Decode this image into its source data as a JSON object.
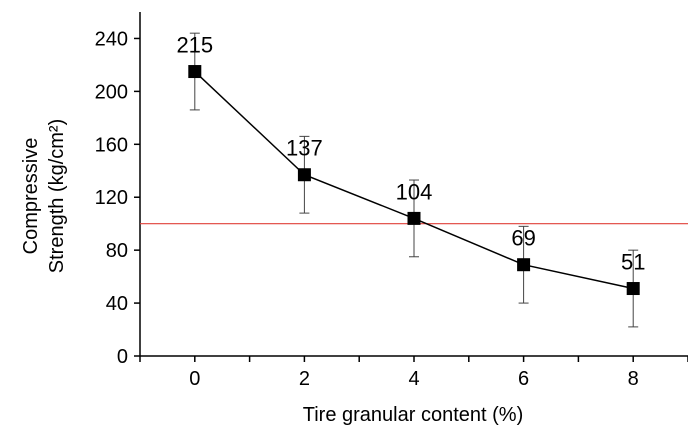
{
  "chart_data": {
    "type": "line",
    "xlabel": "Tire granular content (%)",
    "ylabel_line1": "Compressive",
    "ylabel_line2": "Strength (kg/cm²)",
    "ylim": [
      0,
      260
    ],
    "xlim": [
      -1,
      9
    ],
    "yticks": [
      "0",
      "40",
      "80",
      "120",
      "160",
      "200",
      "240"
    ],
    "xticks": [
      "0",
      "2",
      "4",
      "6",
      "8"
    ],
    "grid": false,
    "series": [
      {
        "x": [
          0,
          2,
          4,
          6,
          8
        ],
        "y": [
          215,
          137,
          104,
          69,
          51
        ],
        "error": [
          29,
          29,
          29,
          29,
          29
        ],
        "labels": [
          "215",
          "137",
          "104",
          "69",
          "51"
        ],
        "marker": "square",
        "color": "#000000"
      }
    ],
    "reference_line": {
      "y": 100,
      "color": "#e0413a"
    }
  }
}
